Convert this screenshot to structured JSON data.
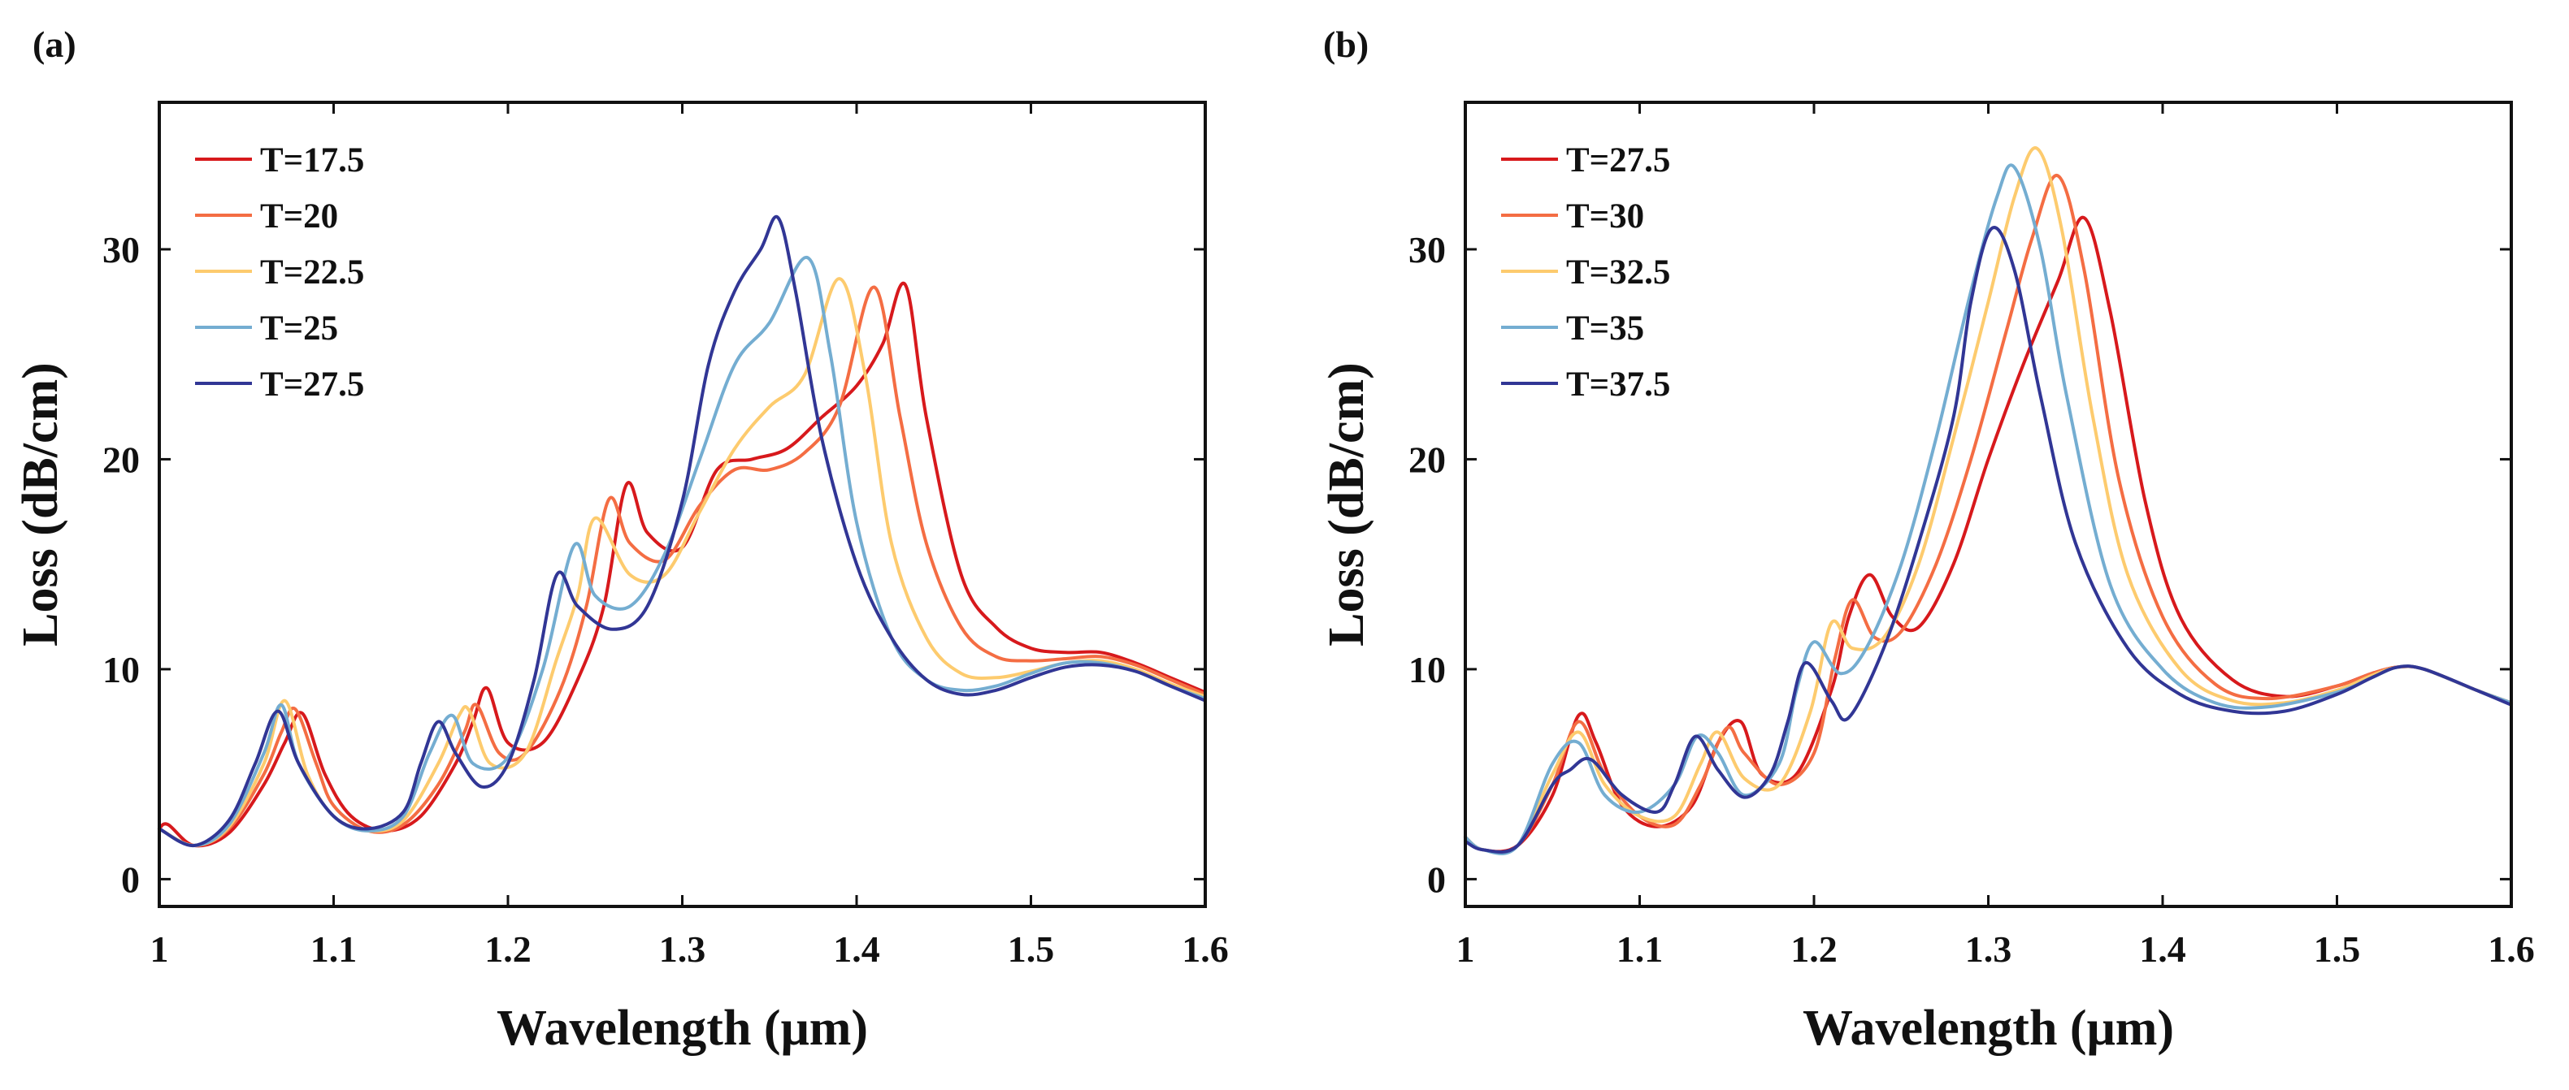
{
  "chart_data": [
    {
      "panel_label": "(a)",
      "type": "line",
      "xlabel": "Wavelength (μm)",
      "ylabel": "Loss (dB/cm)",
      "xlim": [
        1.0,
        1.6
      ],
      "ylim": [
        -1.3,
        37.0
      ],
      "xticks": [
        1.0,
        1.1,
        1.2,
        1.3,
        1.4,
        1.5,
        1.6
      ],
      "xtick_labels": [
        "1",
        "1.1",
        "1.2",
        "1.3",
        "1.4",
        "1.5",
        "1.6"
      ],
      "yticks": [
        0,
        10,
        20,
        30
      ],
      "ytick_labels": [
        "0",
        "10",
        "20",
        "30"
      ],
      "grid": false,
      "legend_position": "top-left",
      "series": [
        {
          "name": "T=17.5",
          "color": "#d7191c",
          "x": [
            1.0,
            1.005,
            1.02,
            1.04,
            1.06,
            1.072,
            1.082,
            1.095,
            1.11,
            1.13,
            1.15,
            1.17,
            1.18,
            1.188,
            1.2,
            1.22,
            1.24,
            1.255,
            1.268,
            1.28,
            1.3,
            1.32,
            1.34,
            1.36,
            1.38,
            1.4,
            1.415,
            1.428,
            1.44,
            1.46,
            1.48,
            1.5,
            1.52,
            1.54,
            1.56,
            1.58,
            1.6
          ],
          "values": [
            2.4,
            2.6,
            1.6,
            2.2,
            4.5,
            6.5,
            7.9,
            5.0,
            3.0,
            2.3,
            3.0,
            5.5,
            7.5,
            9.1,
            6.5,
            6.5,
            9.5,
            13.0,
            18.8,
            16.5,
            15.8,
            19.5,
            20.0,
            20.5,
            22.0,
            23.5,
            25.5,
            28.3,
            22.0,
            14.5,
            12.0,
            11.0,
            10.8,
            10.8,
            10.3,
            9.6,
            8.9
          ]
        },
        {
          "name": "T=20",
          "color": "#f46d43",
          "x": [
            1.0,
            1.02,
            1.04,
            1.06,
            1.07,
            1.078,
            1.09,
            1.1,
            1.12,
            1.14,
            1.16,
            1.175,
            1.182,
            1.195,
            1.21,
            1.23,
            1.245,
            1.258,
            1.27,
            1.29,
            1.31,
            1.33,
            1.35,
            1.37,
            1.39,
            1.41,
            1.425,
            1.44,
            1.46,
            1.48,
            1.5,
            1.52,
            1.54,
            1.56,
            1.58,
            1.6
          ],
          "values": [
            2.4,
            1.6,
            2.4,
            5.0,
            7.0,
            8.1,
            5.5,
            3.5,
            2.3,
            2.6,
            4.5,
            7.0,
            8.3,
            6.0,
            6.0,
            9.0,
            13.0,
            18.1,
            16.0,
            15.2,
            17.8,
            19.5,
            19.5,
            20.3,
            22.5,
            28.2,
            22.0,
            16.0,
            12.0,
            10.6,
            10.4,
            10.5,
            10.6,
            10.2,
            9.5,
            8.8
          ]
        },
        {
          "name": "T=22.5",
          "color": "#fdcb6e",
          "x": [
            1.0,
            1.02,
            1.04,
            1.06,
            1.072,
            1.085,
            1.1,
            1.12,
            1.14,
            1.16,
            1.172,
            1.178,
            1.19,
            1.21,
            1.228,
            1.24,
            1.25,
            1.27,
            1.29,
            1.31,
            1.33,
            1.35,
            1.37,
            1.39,
            1.405,
            1.42,
            1.44,
            1.46,
            1.48,
            1.5,
            1.52,
            1.54,
            1.56,
            1.58,
            1.6
          ],
          "values": [
            2.4,
            1.6,
            2.5,
            5.5,
            8.5,
            5.0,
            3.0,
            2.3,
            2.8,
            5.5,
            7.8,
            8.0,
            5.5,
            6.0,
            10.5,
            13.5,
            17.2,
            14.5,
            14.5,
            17.5,
            20.5,
            22.5,
            24.0,
            28.6,
            24.0,
            16.0,
            11.5,
            9.8,
            9.6,
            9.9,
            10.3,
            10.4,
            10.0,
            9.3,
            8.7
          ]
        },
        {
          "name": "T=25",
          "color": "#74add1",
          "x": [
            1.0,
            1.02,
            1.04,
            1.06,
            1.07,
            1.08,
            1.1,
            1.12,
            1.14,
            1.155,
            1.168,
            1.18,
            1.2,
            1.22,
            1.238,
            1.25,
            1.27,
            1.29,
            1.31,
            1.33,
            1.35,
            1.372,
            1.385,
            1.4,
            1.42,
            1.44,
            1.46,
            1.48,
            1.5,
            1.52,
            1.54,
            1.56,
            1.58,
            1.6
          ],
          "values": [
            2.4,
            1.6,
            2.6,
            6.0,
            8.3,
            5.5,
            3.0,
            2.3,
            3.0,
            6.0,
            7.8,
            5.5,
            5.8,
            10.0,
            15.9,
            13.5,
            13.0,
            15.5,
            20.0,
            24.5,
            26.5,
            29.6,
            25.0,
            17.0,
            11.5,
            9.5,
            9.0,
            9.2,
            9.8,
            10.3,
            10.3,
            9.9,
            9.2,
            8.6
          ]
        },
        {
          "name": "T=27.5",
          "color": "#313695",
          "x": [
            1.0,
            1.02,
            1.04,
            1.055,
            1.068,
            1.08,
            1.1,
            1.12,
            1.14,
            1.15,
            1.16,
            1.17,
            1.185,
            1.2,
            1.215,
            1.228,
            1.24,
            1.26,
            1.28,
            1.3,
            1.315,
            1.33,
            1.345,
            1.355,
            1.365,
            1.38,
            1.4,
            1.42,
            1.44,
            1.46,
            1.48,
            1.5,
            1.52,
            1.54,
            1.56,
            1.58,
            1.6
          ],
          "values": [
            2.4,
            1.6,
            2.8,
            5.5,
            8.0,
            5.5,
            3.0,
            2.4,
            3.2,
            5.5,
            7.5,
            6.0,
            4.4,
            5.5,
            9.5,
            14.5,
            13.0,
            11.9,
            13.0,
            18.0,
            24.5,
            28.0,
            30.0,
            31.5,
            28.0,
            21.0,
            15.0,
            11.5,
            9.5,
            8.8,
            9.0,
            9.6,
            10.1,
            10.2,
            9.9,
            9.2,
            8.5
          ]
        }
      ]
    },
    {
      "panel_label": "(b)",
      "type": "line",
      "xlabel": "Wavelength (μm)",
      "ylabel": "Loss (dB/cm)",
      "xlim": [
        1.0,
        1.6
      ],
      "ylim": [
        -1.3,
        37.0
      ],
      "xticks": [
        1.0,
        1.1,
        1.2,
        1.3,
        1.4,
        1.5,
        1.6
      ],
      "xtick_labels": [
        "1",
        "1.1",
        "1.2",
        "1.3",
        "1.4",
        "1.5",
        "1.6"
      ],
      "yticks": [
        0,
        10,
        20,
        30
      ],
      "ytick_labels": [
        "0",
        "10",
        "20",
        "30"
      ],
      "grid": false,
      "legend_position": "top-left",
      "series": [
        {
          "name": "T=27.5",
          "color": "#d7191c",
          "x": [
            1.0,
            1.01,
            1.03,
            1.05,
            1.065,
            1.075,
            1.09,
            1.11,
            1.13,
            1.145,
            1.158,
            1.17,
            1.19,
            1.21,
            1.22,
            1.232,
            1.245,
            1.26,
            1.28,
            1.3,
            1.32,
            1.34,
            1.355,
            1.37,
            1.39,
            1.41,
            1.44,
            1.47,
            1.5,
            1.52,
            1.535,
            1.55,
            1.58,
            1.6
          ],
          "values": [
            2.0,
            1.4,
            1.6,
            4.0,
            7.8,
            6.5,
            3.5,
            2.5,
            3.5,
            6.5,
            7.5,
            5.0,
            5.0,
            9.0,
            12.5,
            14.5,
            12.5,
            12.0,
            15.0,
            20.0,
            24.5,
            28.5,
            31.5,
            27.0,
            18.0,
            12.5,
            9.5,
            8.7,
            9.2,
            9.8,
            10.1,
            10.0,
            9.0,
            8.4
          ]
        },
        {
          "name": "T=30",
          "color": "#f46d43",
          "x": [
            1.0,
            1.01,
            1.03,
            1.05,
            1.065,
            1.08,
            1.1,
            1.12,
            1.135,
            1.15,
            1.16,
            1.18,
            1.2,
            1.212,
            1.222,
            1.235,
            1.25,
            1.27,
            1.29,
            1.31,
            1.325,
            1.34,
            1.355,
            1.375,
            1.4,
            1.43,
            1.46,
            1.5,
            1.52,
            1.535,
            1.55,
            1.58,
            1.6
          ],
          "values": [
            2.0,
            1.4,
            1.6,
            4.5,
            7.5,
            5.0,
            3.0,
            2.6,
            4.5,
            7.2,
            6.0,
            4.5,
            6.0,
            10.5,
            13.3,
            11.5,
            11.8,
            15.0,
            20.0,
            26.0,
            30.5,
            33.5,
            29.0,
            19.0,
            12.5,
            9.3,
            8.6,
            9.2,
            9.8,
            10.1,
            10.0,
            9.0,
            8.4
          ]
        },
        {
          "name": "T=32.5",
          "color": "#fdcb6e",
          "x": [
            1.0,
            1.01,
            1.03,
            1.05,
            1.065,
            1.08,
            1.1,
            1.12,
            1.135,
            1.145,
            1.16,
            1.18,
            1.198,
            1.21,
            1.222,
            1.24,
            1.26,
            1.28,
            1.3,
            1.315,
            1.328,
            1.342,
            1.36,
            1.38,
            1.41,
            1.44,
            1.47,
            1.5,
            1.52,
            1.535,
            1.55,
            1.58,
            1.6
          ],
          "values": [
            2.0,
            1.4,
            1.6,
            5.0,
            7.0,
            4.5,
            3.0,
            3.0,
            5.5,
            7.0,
            4.8,
            4.5,
            8.0,
            12.2,
            11.0,
            11.5,
            15.0,
            21.0,
            27.5,
            32.5,
            34.8,
            31.0,
            22.0,
            14.5,
            10.0,
            8.5,
            8.4,
            9.0,
            9.7,
            10.1,
            10.0,
            9.0,
            8.4
          ]
        },
        {
          "name": "T=35",
          "color": "#74add1",
          "x": [
            1.0,
            1.01,
            1.03,
            1.05,
            1.065,
            1.08,
            1.1,
            1.12,
            1.133,
            1.145,
            1.16,
            1.18,
            1.19,
            1.2,
            1.215,
            1.23,
            1.25,
            1.27,
            1.29,
            1.305,
            1.315,
            1.33,
            1.345,
            1.37,
            1.4,
            1.43,
            1.46,
            1.5,
            1.52,
            1.535,
            1.55,
            1.58,
            1.6
          ],
          "values": [
            2.0,
            1.4,
            1.6,
            5.5,
            6.5,
            4.0,
            3.2,
            4.5,
            6.8,
            6.0,
            4.0,
            5.5,
            9.0,
            11.3,
            9.8,
            11.0,
            15.0,
            21.0,
            28.0,
            32.5,
            33.9,
            30.0,
            23.0,
            14.0,
            10.0,
            8.4,
            8.2,
            8.9,
            9.6,
            10.1,
            10.0,
            9.0,
            8.4
          ]
        },
        {
          "name": "T=37.5",
          "color": "#313695",
          "x": [
            1.0,
            1.01,
            1.03,
            1.05,
            1.06,
            1.072,
            1.09,
            1.11,
            1.12,
            1.132,
            1.145,
            1.16,
            1.175,
            1.185,
            1.195,
            1.21,
            1.22,
            1.24,
            1.26,
            1.28,
            1.29,
            1.302,
            1.315,
            1.33,
            1.35,
            1.38,
            1.41,
            1.44,
            1.47,
            1.5,
            1.52,
            1.535,
            1.55,
            1.58,
            1.6
          ],
          "values": [
            1.8,
            1.4,
            1.6,
            4.5,
            5.2,
            5.7,
            4.0,
            3.2,
            4.5,
            6.8,
            5.2,
            3.9,
            5.0,
            7.5,
            10.3,
            8.5,
            7.7,
            11.0,
            16.0,
            22.0,
            27.5,
            31.0,
            29.0,
            23.0,
            16.0,
            11.0,
            8.8,
            8.0,
            8.0,
            8.8,
            9.6,
            10.1,
            10.0,
            9.0,
            8.3
          ]
        }
      ]
    }
  ]
}
